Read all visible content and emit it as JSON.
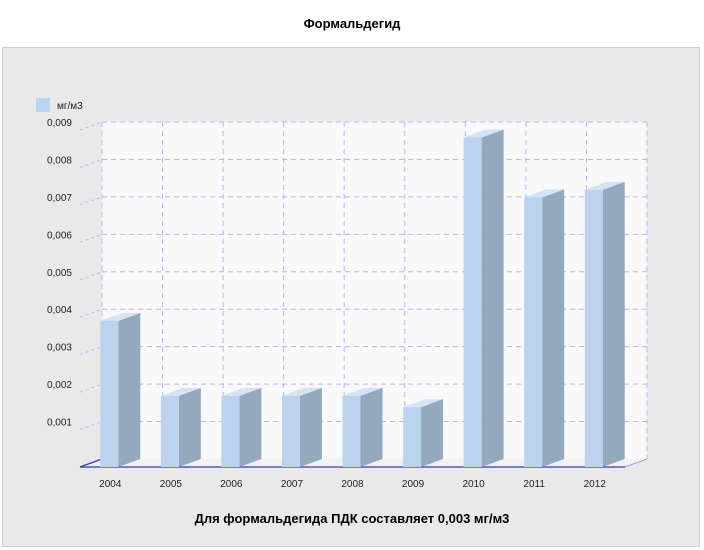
{
  "chart_data": {
    "type": "bar",
    "title": "Формальдегид",
    "caption": "Для формальдегида ПДК составляет 0,003 мг/м3",
    "legend_position": "top-left",
    "grid": true,
    "ylim": [
      0,
      0.009
    ],
    "y_ticks": [
      "0,001",
      "0,002",
      "0,003",
      "0,004",
      "0,005",
      "0,006",
      "0,007",
      "0,008",
      "0,009"
    ],
    "categories": [
      "2004",
      "2005",
      "2006",
      "2007",
      "2008",
      "2009",
      "2010",
      "2011",
      "2012"
    ],
    "series": [
      {
        "name": "мг/м3",
        "values": [
          0.0039,
          0.0019,
          0.0019,
          0.0019,
          0.0019,
          0.0016,
          0.0088,
          0.0072,
          0.0074
        ]
      }
    ]
  },
  "colors": {
    "bar_front": "#bcd3ee",
    "bar_side": "#94a8be",
    "bar_top": "#d4e3f5",
    "grid": "#b6b6ff",
    "axis": "#3a3ab0",
    "plot_bg": "#f9f9f9",
    "panel_bg": "#e9e9e9"
  }
}
